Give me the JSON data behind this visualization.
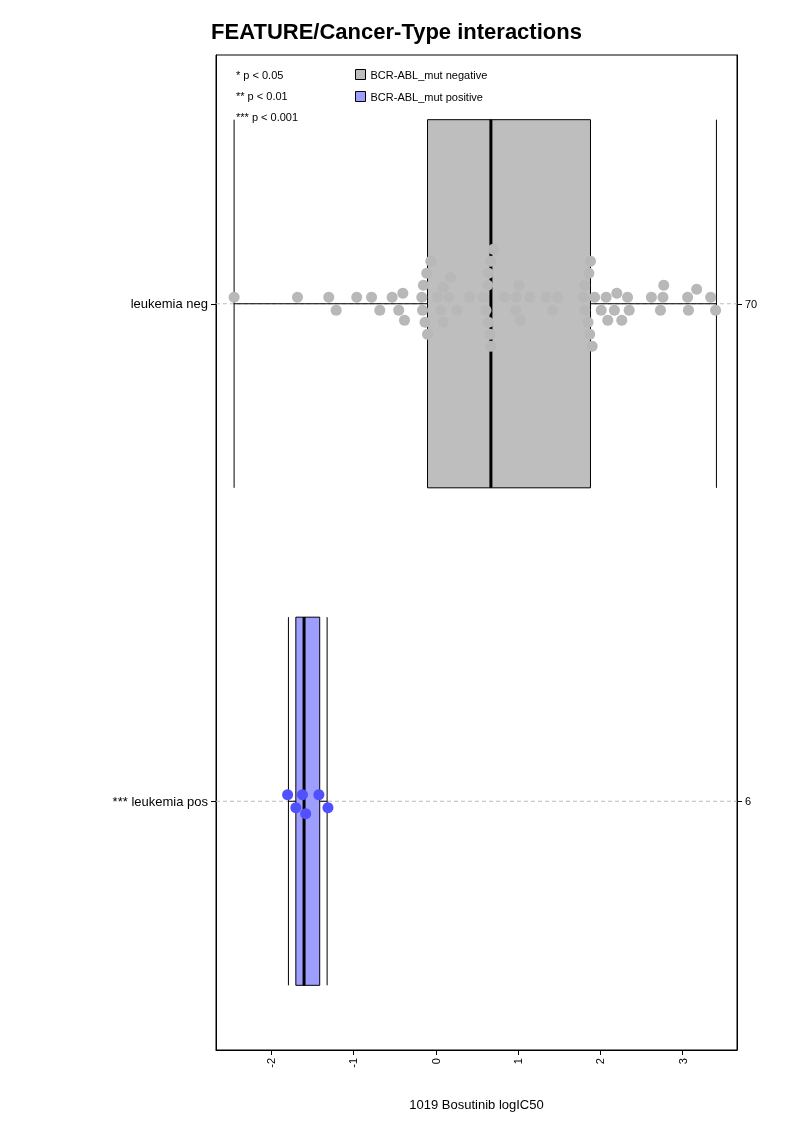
{
  "chart_data": {
    "type": "box",
    "title": "FEATURE/Cancer-Type interactions",
    "xlabel": "1019 Bosutinib logIC50",
    "orientation": "horizontal",
    "categories": [
      "leukemia neg",
      "*** leukemia pos"
    ],
    "y2_categories": [
      "70",
      "6"
    ],
    "series": [
      {
        "name": "BCR-ABL_mut negative",
        "color": "#bebebe",
        "boxes": [
          {
            "low": -2.45,
            "q1": -0.1,
            "median": 0.67,
            "q3": 1.88,
            "high": 3.41
          },
          null
        ]
      },
      {
        "name": "BCR-ABL_mut positive",
        "color": "#9e9eff",
        "axis": "y2",
        "boxes": [
          null,
          {
            "low": -1.79,
            "q1": -1.7,
            "median": -1.6,
            "q3": -1.41,
            "high": -1.32
          }
        ]
      },
      {
        "type": "scatter",
        "color": "#b8b8b8",
        "x": [
          "leukemia neg",
          "leukemia neg",
          "leukemia neg",
          "leukemia neg",
          "leukemia neg",
          "leukemia neg",
          "leukemia neg",
          "leukemia neg",
          "leukemia neg",
          "leukemia neg",
          "leukemia neg",
          "leukemia neg",
          "leukemia neg",
          "leukemia neg",
          "leukemia neg",
          "leukemia neg",
          "leukemia neg",
          "leukemia neg",
          "leukemia neg",
          "leukemia neg",
          "leukemia neg",
          "leukemia neg",
          "leukemia neg",
          "leukemia neg",
          "leukemia neg",
          "leukemia neg",
          "leukemia neg",
          "leukemia neg",
          "leukemia neg",
          "leukemia neg",
          "leukemia neg",
          "leukemia neg",
          "leukemia neg",
          "leukemia neg",
          "leukemia neg",
          "leukemia neg",
          "leukemia neg",
          "leukemia neg",
          "leukemia neg",
          "leukemia neg",
          "leukemia neg",
          "leukemia neg",
          "leukemia neg",
          "leukemia neg",
          "leukemia neg",
          "leukemia neg",
          "leukemia neg",
          "leukemia neg",
          "leukemia neg",
          "leukemia neg",
          "leukemia neg",
          "leukemia neg",
          "leukemia neg",
          "leukemia neg",
          "leukemia neg",
          "leukemia neg",
          "leukemia neg",
          "leukemia neg",
          "leukemia neg",
          "leukemia neg",
          "leukemia neg",
          "leukemia neg",
          "leukemia neg",
          "leukemia neg",
          "leukemia neg",
          "leukemia neg",
          "leukemia neg",
          "leukemia neg",
          "leukemia neg",
          "leukemia neg"
        ],
        "values": [
          -2.45,
          -1.68,
          -1.3,
          -1.21,
          -0.96,
          -0.78,
          -0.68,
          -0.53,
          -0.45,
          -0.4,
          -0.38,
          -0.17,
          -0.16,
          -0.15,
          -0.13,
          -0.11,
          -0.1,
          -0.06,
          0.02,
          0.06,
          0.09,
          0.09,
          0.16,
          0.18,
          0.26,
          0.41,
          0.58,
          0.61,
          0.63,
          0.64,
          0.64,
          0.66,
          0.67,
          0.67,
          0.7,
          0.84,
          0.97,
          0.98,
          1.01,
          1.03,
          1.14,
          1.34,
          1.42,
          1.48,
          1.79,
          1.81,
          1.81,
          1.85,
          1.86,
          1.87,
          1.88,
          1.9,
          1.93,
          2.01,
          2.07,
          2.09,
          2.17,
          2.2,
          2.26,
          2.33,
          2.35,
          2.62,
          2.73,
          2.76,
          2.77,
          3.06,
          3.07,
          3.17,
          3.34,
          3.4
        ]
      },
      {
        "type": "scatter",
        "color": "#5050ff",
        "x": [
          "*** leukemia pos",
          "*** leukemia pos",
          "*** leukemia pos",
          "*** leukemia pos",
          "*** leukemia pos",
          "*** leukemia pos"
        ],
        "values": [
          -1.8,
          -1.7,
          -1.62,
          -1.58,
          -1.42,
          -1.31
        ]
      }
    ],
    "xlim": [
      -2.67,
      3.66
    ],
    "xticks": [
      -2,
      -1,
      0,
      1,
      2,
      3
    ],
    "grid": "y",
    "marker": "circle",
    "legend": "top left",
    "annotations": [
      "* p < 0.05",
      "** p < 0.01",
      "*** p < 0.001"
    ]
  }
}
